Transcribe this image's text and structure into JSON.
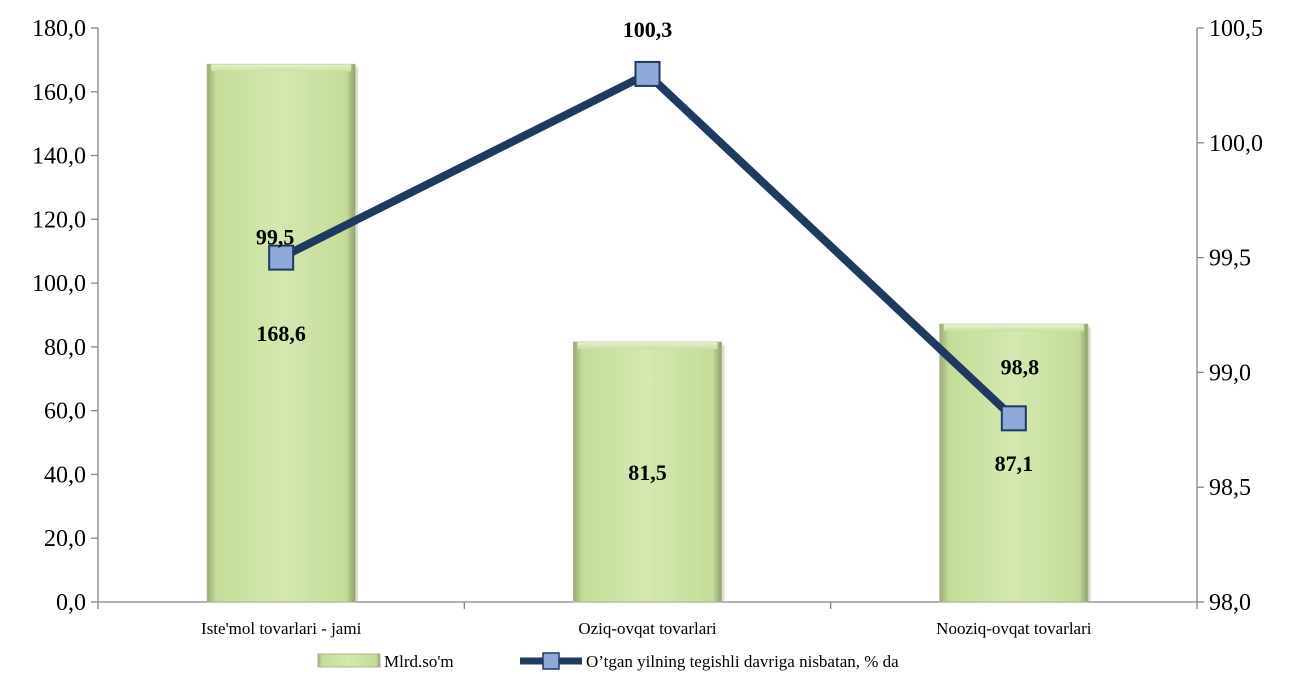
{
  "chart_data": {
    "type": "bar",
    "categories": [
      "Iste'mol tovarlari - jami",
      "Oziq-ovqat tovarlari",
      "Nooziq-ovqat tovarlari"
    ],
    "series": [
      {
        "name": "Mlrd.so'm",
        "type": "bar",
        "axis": "left",
        "values": [
          168.6,
          81.5,
          87.1
        ],
        "labels": [
          "168,6",
          "81,5",
          "87,1"
        ],
        "color": "#c9e0a0"
      },
      {
        "name": "O’tgan yilning tegishli davriga nisbatan, % da",
        "type": "line",
        "axis": "right",
        "values": [
          99.5,
          100.3,
          98.8
        ],
        "labels": [
          "99,5",
          "100,3",
          "98,8"
        ],
        "color": "#1f3a5f",
        "marker_color": "#8ea9d8"
      }
    ],
    "y_left": {
      "range": [
        0,
        180
      ],
      "ticks": [
        0,
        20,
        40,
        60,
        80,
        100,
        120,
        140,
        160,
        180
      ],
      "tick_labels": [
        "0,0",
        "20,0",
        "40,0",
        "60,0",
        "80,0",
        "100,0",
        "120,0",
        "140,0",
        "160,0",
        "180,0"
      ]
    },
    "y_right": {
      "range": [
        98.0,
        100.5
      ],
      "ticks": [
        98.0,
        98.5,
        99.0,
        99.5,
        100.0,
        100.5
      ],
      "tick_labels": [
        "98,0",
        "98,5",
        "99,0",
        "99,5",
        "100,0",
        "100,5"
      ]
    },
    "title": "",
    "xlabel": "",
    "ylabel": "",
    "grid": false,
    "legend": "bottom"
  }
}
